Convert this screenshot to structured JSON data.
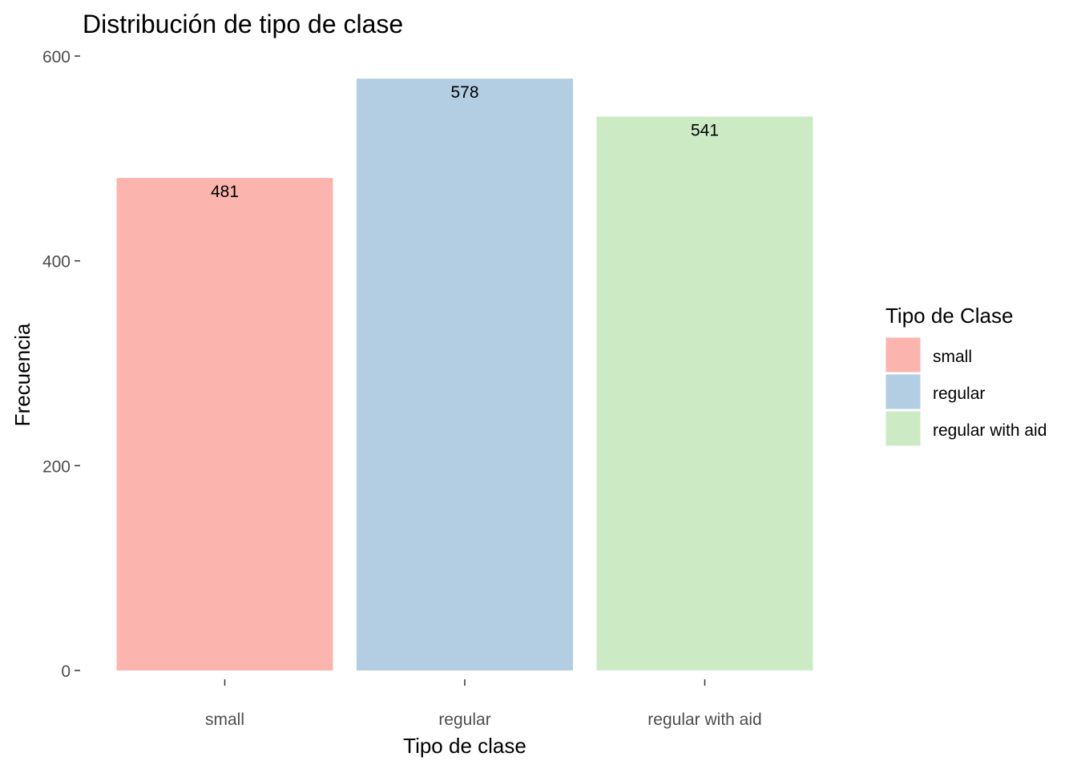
{
  "chart_data": {
    "type": "bar",
    "title": "Distribución de tipo de clase",
    "xlabel": "Tipo de clase",
    "ylabel": "Frecuencia",
    "categories": [
      "small",
      "regular",
      "regular with aid"
    ],
    "values": [
      481,
      578,
      541
    ],
    "data_labels": [
      "481",
      "578",
      "541"
    ],
    "ylim": [
      0,
      600
    ],
    "y_ticks": [
      0,
      200,
      400,
      600
    ],
    "y_tick_labels": [
      "0",
      "200",
      "400",
      "600"
    ],
    "grid": false,
    "legend": {
      "title": "Tipo de Clase",
      "placement": "right",
      "entries": [
        "small",
        "regular",
        "regular with aid"
      ]
    },
    "colors": [
      "#FBB4AE",
      "#B3CDE3",
      "#CCEBC5"
    ]
  }
}
